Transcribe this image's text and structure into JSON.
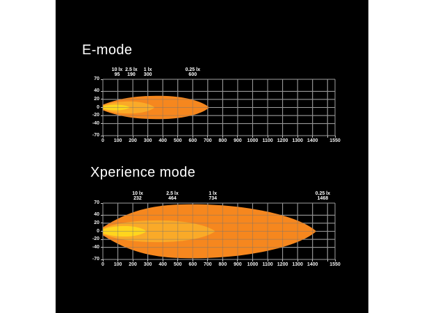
{
  "page": {
    "background": "#ffffff"
  },
  "panel": {
    "background": "#000000"
  },
  "colors": {
    "grid": "#c4c4c4",
    "grid_overlay": "rgba(115,115,115,0.45)",
    "axis_text": "#f0f0f0",
    "title_text": "#ffffff",
    "beam_outer": "#F6871E",
    "beam_mid": "#FAAA28",
    "beam_core": "#FFD51E"
  },
  "chart_data": [
    {
      "type": "area",
      "title": "E-mode",
      "xlim": [
        0,
        1550
      ],
      "ylim": [
        -70,
        70
      ],
      "grid": true,
      "x_gridlines": [
        0,
        100,
        200,
        300,
        400,
        500,
        600,
        700,
        800,
        900,
        1000,
        1100,
        1200,
        1300,
        1400,
        1500,
        1550
      ],
      "x_tick_labels": [
        0,
        100,
        200,
        300,
        400,
        500,
        600,
        700,
        800,
        900,
        1000,
        1100,
        1200,
        1300,
        1400,
        1550
      ],
      "y_tick_labels": [
        70,
        40,
        20,
        0,
        -20,
        -40,
        -70
      ],
      "annotations": [
        {
          "lux": "10 lx",
          "distance": 95
        },
        {
          "lux": "2.5 lx",
          "distance": 190
        },
        {
          "lux": "1 lx",
          "distance": 300
        },
        {
          "lux": "0.25 lx",
          "distance": 600
        }
      ],
      "beams": [
        {
          "name": "outer-0-25-lx-zone",
          "color": "beam_outer",
          "reach": 710,
          "max_half_width": 29,
          "start_half_width": 7,
          "peak_x": 380
        },
        {
          "name": "mid-1-lx-zone",
          "color": "beam_mid",
          "reach": 345,
          "max_half_width": 15,
          "start_half_width": 5,
          "peak_x": 180
        },
        {
          "name": "core-10-lx-zone",
          "color": "beam_core",
          "reach": 180,
          "max_half_width": 7,
          "start_half_width": 3,
          "peak_x": 90
        }
      ]
    },
    {
      "type": "area",
      "title": "Xperience mode",
      "xlim": [
        0,
        1550
      ],
      "ylim": [
        -70,
        70
      ],
      "grid": true,
      "x_gridlines": [
        0,
        100,
        200,
        300,
        400,
        500,
        600,
        700,
        800,
        900,
        1000,
        1100,
        1200,
        1300,
        1400,
        1500,
        1550
      ],
      "x_tick_labels": [
        0,
        100,
        200,
        300,
        400,
        500,
        600,
        700,
        800,
        900,
        1000,
        1100,
        1200,
        1300,
        1400,
        1550
      ],
      "y_tick_labels": [
        70,
        40,
        20,
        0,
        -20,
        -40,
        -70
      ],
      "annotations": [
        {
          "lux": "10 lx",
          "distance": 232
        },
        {
          "lux": "2.5 lx",
          "distance": 464
        },
        {
          "lux": "1 lx",
          "distance": 734
        },
        {
          "lux": "0.25 lx",
          "distance": 1468
        }
      ],
      "beams": [
        {
          "name": "outer-0-25-lx-zone",
          "color": "beam_outer",
          "reach": 1425,
          "max_half_width": 67,
          "start_half_width": 10,
          "peak_x": 600
        },
        {
          "name": "mid-1-lx-zone",
          "color": "beam_mid",
          "reach": 750,
          "max_half_width": 27,
          "start_half_width": 8,
          "peak_x": 380
        },
        {
          "name": "core-10-lx-zone",
          "color": "beam_core",
          "reach": 290,
          "max_half_width": 13,
          "start_half_width": 5,
          "peak_x": 150
        }
      ]
    }
  ]
}
